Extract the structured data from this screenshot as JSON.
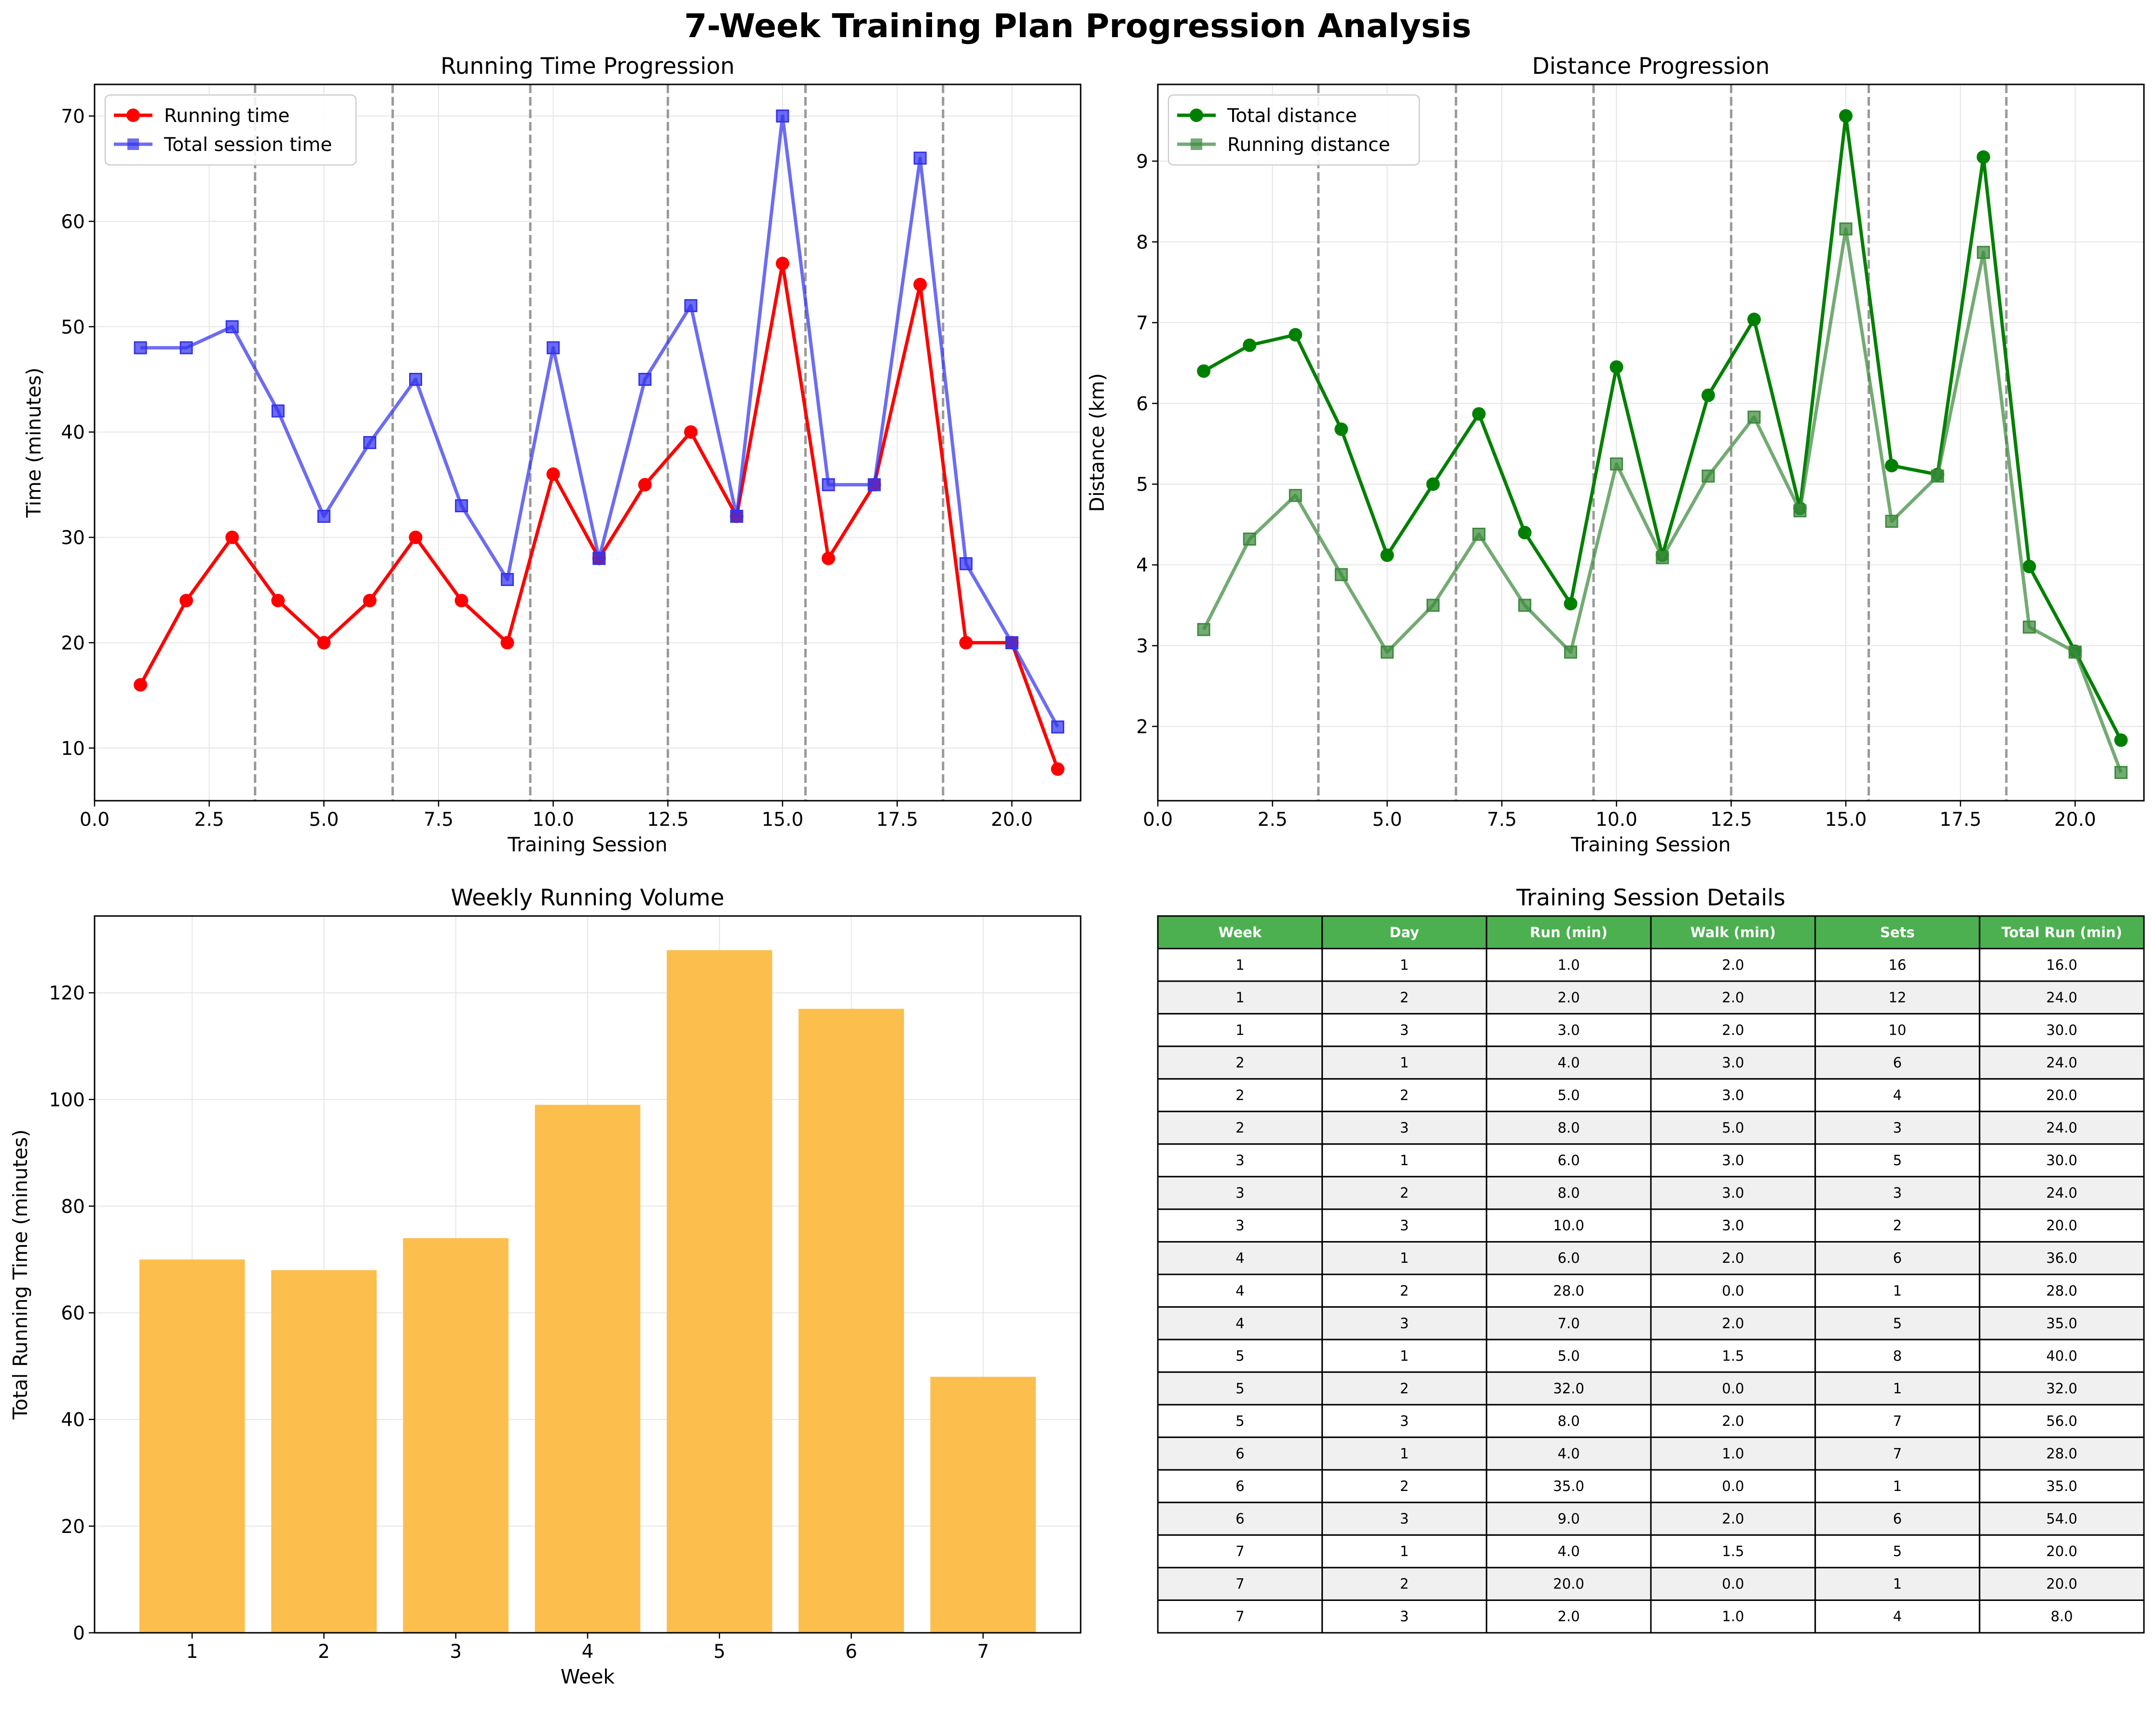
{
  "title": "7-Week Training Plan Progression Analysis",
  "colors": {
    "running_time": "#ff0000",
    "total_session_time": "#3333ee",
    "total_distance": "#008000",
    "running_distance": "#3d8a3d",
    "weekly_bar": "#fcbf4d",
    "table_header": "#4caf50",
    "table_row_alt": "#f0f0f0",
    "week_divider": "#999999"
  },
  "chart_data": [
    {
      "type": "line",
      "title": "Running Time Progression",
      "xlabel": "Training Session",
      "ylabel": "Time (minutes)",
      "xlim": [
        0,
        21.5
      ],
      "ylim": [
        5,
        73
      ],
      "xticks": [
        "0.0",
        "2.5",
        "5.0",
        "7.5",
        "10.0",
        "12.5",
        "15.0",
        "17.5",
        "20.0"
      ],
      "yticks": [
        "10",
        "20",
        "30",
        "40",
        "50",
        "60",
        "70"
      ],
      "grid": true,
      "legend": "top-left",
      "week_dividers": [
        3.5,
        6.5,
        9.5,
        12.5,
        15.5,
        18.5
      ],
      "x": [
        1,
        2,
        3,
        4,
        5,
        6,
        7,
        8,
        9,
        10,
        11,
        12,
        13,
        14,
        15,
        16,
        17,
        18,
        19,
        20,
        21
      ],
      "series": [
        {
          "name": "Running time",
          "marker": "circle",
          "values": [
            16,
            24,
            30,
            24,
            20,
            24,
            30,
            24,
            20,
            36,
            28,
            35,
            40,
            32,
            56,
            28,
            35,
            54,
            20,
            20,
            8
          ]
        },
        {
          "name": "Total session time",
          "marker": "square",
          "values": [
            48,
            48,
            50,
            42,
            32,
            39,
            45,
            33,
            26,
            48,
            28,
            45,
            52,
            32,
            70,
            35,
            35,
            66,
            27.5,
            20,
            12
          ]
        }
      ]
    },
    {
      "type": "line",
      "title": "Distance Progression",
      "xlabel": "Training Session",
      "ylabel": "Distance (km)",
      "xlim": [
        0,
        21.5
      ],
      "ylim": [
        1.08,
        9.95
      ],
      "xticks": [
        "0.0",
        "2.5",
        "5.0",
        "7.5",
        "10.0",
        "12.5",
        "15.0",
        "17.5",
        "20.0"
      ],
      "yticks": [
        "2",
        "3",
        "4",
        "5",
        "6",
        "7",
        "8",
        "9"
      ],
      "grid": true,
      "legend": "top-left",
      "week_dividers": [
        3.5,
        6.5,
        9.5,
        12.5,
        15.5,
        18.5
      ],
      "x": [
        1,
        2,
        3,
        4,
        5,
        6,
        7,
        8,
        9,
        10,
        11,
        12,
        13,
        14,
        15,
        16,
        17,
        18,
        19,
        20,
        21
      ],
      "series": [
        {
          "name": "Total distance",
          "marker": "circle",
          "values": [
            6.4,
            6.72,
            6.85,
            5.68,
            4.12,
            5.0,
            5.87,
            4.4,
            3.52,
            6.45,
            4.12,
            6.1,
            7.04,
            4.7,
            9.56,
            5.23,
            5.12,
            9.05,
            3.98,
            2.93,
            1.83
          ]
        },
        {
          "name": "Running distance",
          "marker": "square",
          "values": [
            3.2,
            4.32,
            4.86,
            3.88,
            2.92,
            3.5,
            4.38,
            3.5,
            2.92,
            5.25,
            4.09,
            5.1,
            5.83,
            4.67,
            8.16,
            4.54,
            5.1,
            7.87,
            3.23,
            2.92,
            1.43
          ]
        }
      ]
    },
    {
      "type": "bar",
      "title": "Weekly Running Volume",
      "xlabel": "Week",
      "ylabel": "Total Running Time (minutes)",
      "categories": [
        "1",
        "2",
        "3",
        "4",
        "5",
        "6",
        "7"
      ],
      "values": [
        70,
        68,
        74,
        99,
        128,
        117,
        48
      ],
      "ylim": [
        0,
        134.4
      ],
      "yticks": [
        "0",
        "20",
        "40",
        "60",
        "80",
        "100",
        "120"
      ],
      "grid": true
    },
    {
      "type": "table",
      "title": "Training Session Details",
      "columns": [
        "Week",
        "Day",
        "Run (min)",
        "Walk (min)",
        "Sets",
        "Total Run (min)"
      ],
      "rows": [
        [
          "1",
          "1",
          "1.0",
          "2.0",
          "16",
          "16.0"
        ],
        [
          "1",
          "2",
          "2.0",
          "2.0",
          "12",
          "24.0"
        ],
        [
          "1",
          "3",
          "3.0",
          "2.0",
          "10",
          "30.0"
        ],
        [
          "2",
          "1",
          "4.0",
          "3.0",
          "6",
          "24.0"
        ],
        [
          "2",
          "2",
          "5.0",
          "3.0",
          "4",
          "20.0"
        ],
        [
          "2",
          "3",
          "8.0",
          "5.0",
          "3",
          "24.0"
        ],
        [
          "3",
          "1",
          "6.0",
          "3.0",
          "5",
          "30.0"
        ],
        [
          "3",
          "2",
          "8.0",
          "3.0",
          "3",
          "24.0"
        ],
        [
          "3",
          "3",
          "10.0",
          "3.0",
          "2",
          "20.0"
        ],
        [
          "4",
          "1",
          "6.0",
          "2.0",
          "6",
          "36.0"
        ],
        [
          "4",
          "2",
          "28.0",
          "0.0",
          "1",
          "28.0"
        ],
        [
          "4",
          "3",
          "7.0",
          "2.0",
          "5",
          "35.0"
        ],
        [
          "5",
          "1",
          "5.0",
          "1.5",
          "8",
          "40.0"
        ],
        [
          "5",
          "2",
          "32.0",
          "0.0",
          "1",
          "32.0"
        ],
        [
          "5",
          "3",
          "8.0",
          "2.0",
          "7",
          "56.0"
        ],
        [
          "6",
          "1",
          "4.0",
          "1.0",
          "7",
          "28.0"
        ],
        [
          "6",
          "2",
          "35.0",
          "0.0",
          "1",
          "35.0"
        ],
        [
          "6",
          "3",
          "9.0",
          "2.0",
          "6",
          "54.0"
        ],
        [
          "7",
          "1",
          "4.0",
          "1.5",
          "5",
          "20.0"
        ],
        [
          "7",
          "2",
          "20.0",
          "0.0",
          "1",
          "20.0"
        ],
        [
          "7",
          "3",
          "2.0",
          "1.0",
          "4",
          "8.0"
        ]
      ]
    }
  ]
}
